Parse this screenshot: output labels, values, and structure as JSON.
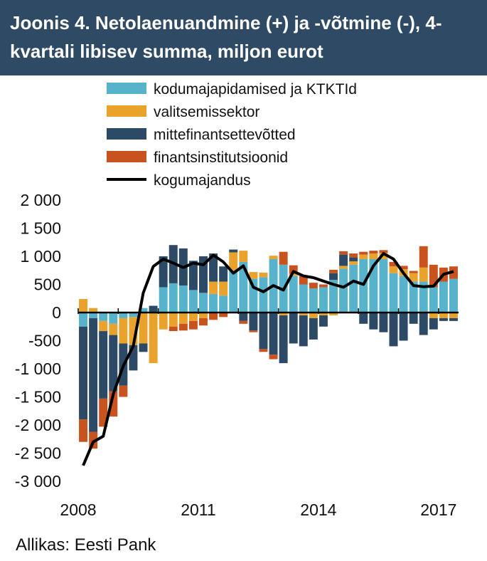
{
  "header": {
    "title": "Joonis 4. Netolaenuandmine (+) ja -võtmine (-), 4-kvartali libisev summa, miljon eurot"
  },
  "source": "Allikas: Eesti Pank",
  "chart_data": {
    "type": "bar",
    "stacked": true,
    "title": "Joonis 4. Netolaenuandmine (+) ja -võtmine (-), 4-kvartali libisev summa, miljon eurot",
    "xlabel": "",
    "ylabel": "",
    "ylim": [
      -3000,
      2000
    ],
    "yticks": [
      2000,
      1500,
      1000,
      500,
      0,
      -500,
      -1000,
      -1500,
      -2000,
      -2500,
      -3000
    ],
    "ytick_labels": [
      "2 000",
      "1 500",
      "1 000",
      "500",
      "0",
      "-500",
      "-1 000",
      "-1 500",
      "-2 000",
      "-2 500",
      "-3 000"
    ],
    "xtick_labels": [
      {
        "label": "2008",
        "index": 0
      },
      {
        "label": "2011",
        "index": 12
      },
      {
        "label": "2014",
        "index": 24
      },
      {
        "label": "2017",
        "index": 36
      }
    ],
    "categories": [
      "2008 Q1",
      "2008 Q2",
      "2008 Q3",
      "2008 Q4",
      "2009 Q1",
      "2009 Q2",
      "2009 Q3",
      "2009 Q4",
      "2010 Q1",
      "2010 Q2",
      "2010 Q3",
      "2010 Q4",
      "2011 Q1",
      "2011 Q2",
      "2011 Q3",
      "2011 Q4",
      "2012 Q1",
      "2012 Q2",
      "2012 Q3",
      "2012 Q4",
      "2013 Q1",
      "2013 Q2",
      "2013 Q3",
      "2013 Q4",
      "2014 Q1",
      "2014 Q2",
      "2014 Q3",
      "2014 Q4",
      "2015 Q1",
      "2015 Q2",
      "2015 Q3",
      "2015 Q4",
      "2016 Q1",
      "2016 Q2",
      "2016 Q3",
      "2016 Q4",
      "2017 Q1",
      "2017 Q2"
    ],
    "series": [
      {
        "name": "kodumajapidamised ja KTKTId",
        "color": "#56b3cb",
        "values": [
          -250,
          -100,
          -150,
          -200,
          -100,
          -80,
          80,
          0,
          450,
          520,
          480,
          400,
          350,
          330,
          300,
          750,
          900,
          600,
          630,
          950,
          850,
          650,
          500,
          430,
          450,
          580,
          780,
          850,
          950,
          950,
          950,
          700,
          650,
          550,
          550,
          450,
          550,
          600
        ]
      },
      {
        "name": "valitsemissektor",
        "color": "#e9a22c",
        "values": [
          240,
          80,
          -180,
          -200,
          -450,
          -500,
          -550,
          -900,
          -300,
          -250,
          -200,
          -150,
          -100,
          220,
          250,
          320,
          200,
          120,
          80,
          60,
          -50,
          40,
          -50,
          -100,
          -50,
          -50,
          50,
          60,
          80,
          100,
          110,
          120,
          120,
          150,
          250,
          -100,
          -100,
          -100
        ]
      },
      {
        "name": "mittefinantsettevõtted",
        "color": "#2c4a66",
        "values": [
          -1650,
          -2020,
          -1200,
          -1000,
          -750,
          -450,
          -150,
          120,
          550,
          680,
          660,
          520,
          650,
          500,
          270,
          50,
          -150,
          -320,
          -650,
          -750,
          -850,
          -550,
          -550,
          -380,
          -200,
          120,
          200,
          70,
          -200,
          -300,
          -350,
          -600,
          -500,
          -200,
          -400,
          -200,
          -50,
          -50
        ]
      },
      {
        "name": "finantsinstitutsioonid",
        "color": "#c8531f",
        "values": [
          -400,
          -300,
          -500,
          -450,
          -200,
          0,
          0,
          0,
          0,
          -80,
          -120,
          -150,
          -130,
          -130,
          -80,
          0,
          -50,
          -30,
          -50,
          -80,
          230,
          150,
          150,
          100,
          50,
          60,
          60,
          70,
          50,
          50,
          50,
          80,
          60,
          40,
          380,
          400,
          250,
          220
        ]
      }
    ],
    "line": {
      "name": "kogumajandus",
      "color": "#000000",
      "values": [
        -2720,
        -2300,
        -2200,
        -1450,
        -950,
        -600,
        350,
        820,
        950,
        880,
        800,
        880,
        850,
        1020,
        900,
        700,
        830,
        450,
        370,
        480,
        400,
        730,
        650,
        620,
        560,
        500,
        450,
        560,
        500,
        830,
        1050,
        950,
        700,
        480,
        460,
        470,
        680,
        730
      ]
    },
    "grid": false,
    "legend": "top"
  }
}
